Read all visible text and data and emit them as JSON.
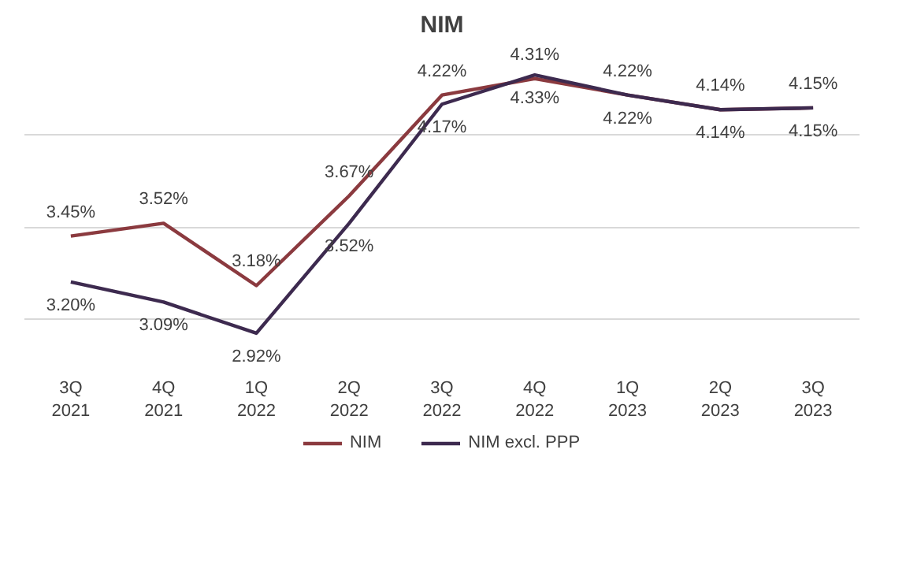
{
  "chart_data": {
    "type": "line",
    "title": "NIM",
    "categories": [
      "3Q\n2021",
      "4Q\n2021",
      "1Q\n2022",
      "2Q\n2022",
      "3Q\n2022",
      "4Q\n2022",
      "1Q\n2023",
      "2Q\n2023",
      "3Q\n2023"
    ],
    "series": [
      {
        "name": "NIM",
        "color": "#8b3a3f",
        "values": [
          3.45,
          3.52,
          3.18,
          3.67,
          4.22,
          4.31,
          4.22,
          4.14,
          4.15
        ],
        "value_labels": [
          "3.45%",
          "3.52%",
          "3.18%",
          "3.67%",
          "4.22%",
          "4.31%",
          "4.22%",
          "4.14%",
          "4.15%"
        ]
      },
      {
        "name": "NIM excl. PPP",
        "color": "#3d2a4f",
        "values": [
          3.2,
          3.09,
          2.92,
          3.52,
          4.17,
          4.33,
          4.22,
          4.14,
          4.15
        ],
        "value_labels": [
          "3.20%",
          "3.09%",
          "2.92%",
          "3.52%",
          "4.17%",
          "4.33%",
          "4.22%",
          "4.14%",
          "4.15%"
        ]
      }
    ],
    "tick_labels": "x",
    "grid": "y",
    "legend": "bottom",
    "marker": "none",
    "line_style": "solid"
  }
}
